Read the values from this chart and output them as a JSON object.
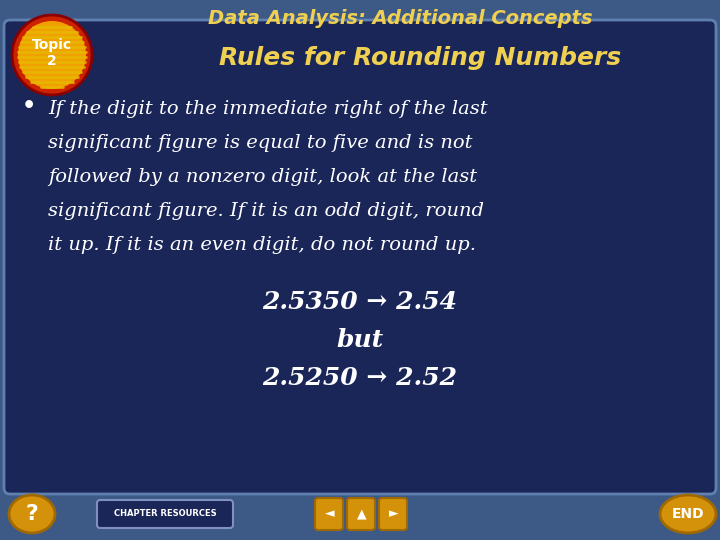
{
  "bg_outer": "#3d5a87",
  "bg_inner": "#1a2558",
  "border_color": "#6080b0",
  "title_text": "Data Analysis: Additional Concepts",
  "title_color": "#f0d050",
  "topic_circle_outer": "#cc2200",
  "topic_circle_inner": "#f0a000",
  "topic_stripe": "#e8b800",
  "topic_label": "Topic\n2",
  "topic_label_color": "#ffffff",
  "subtitle_text": "Rules for Rounding Numbers",
  "subtitle_color": "#f0d050",
  "bullet_color": "#ffffff",
  "example_line1": "2.5350 → 2.54",
  "example_line2": "but",
  "example_line3": "2.5250 → 2.52",
  "example_color": "#ffffff",
  "nav_btn_color": "#d4920a",
  "nav_btn_edge": "#a06800",
  "chapter_res_bg": "#1a2558",
  "chapter_res_border": "#8090c0",
  "lines": [
    "If the digit to the immediate right of the last",
    "significant figure is equal to five and is not",
    "followed by a nonzero digit, look at the last",
    "significant figure. If it is an odd digit, round",
    "it up. If it is an even digit, do not round up."
  ]
}
